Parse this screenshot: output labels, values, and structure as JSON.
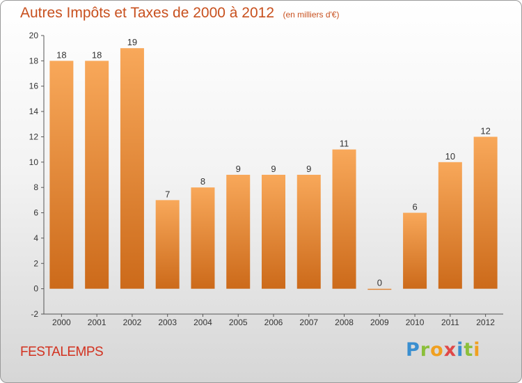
{
  "header": {
    "title": "Autres Impôts et Taxes de 2000 à 2012",
    "unit": "(en milliers d'€)"
  },
  "footer": {
    "commune": "FESTALEMPS",
    "logo": [
      "P",
      "r",
      "o",
      "x",
      "i",
      "t",
      "i"
    ],
    "logo_colors": [
      "#3a8fd0",
      "#8bbf3a",
      "#f0a020",
      "#e04848",
      "#3a8fd0",
      "#8bbf3a",
      "#f0a020"
    ]
  },
  "chart_data": {
    "type": "bar",
    "title": "Autres Impôts et Taxes de 2000 à 2012",
    "subtitle": "(en milliers d'€)",
    "categories": [
      "2000",
      "2001",
      "2002",
      "2003",
      "2004",
      "2005",
      "2006",
      "2007",
      "2008",
      "2009",
      "2010",
      "2011",
      "2012"
    ],
    "values": [
      18,
      18,
      19,
      7,
      8,
      9,
      9,
      9,
      11,
      0,
      6,
      10,
      12
    ],
    "ylim": [
      -2,
      20
    ],
    "yticks": [
      -2,
      0,
      2,
      4,
      6,
      8,
      10,
      12,
      14,
      16,
      18,
      20
    ],
    "grid": false,
    "bar_color_light": "#f8a85a",
    "bar_color_dark": "#cc6a1a",
    "text_color": "#333333"
  }
}
